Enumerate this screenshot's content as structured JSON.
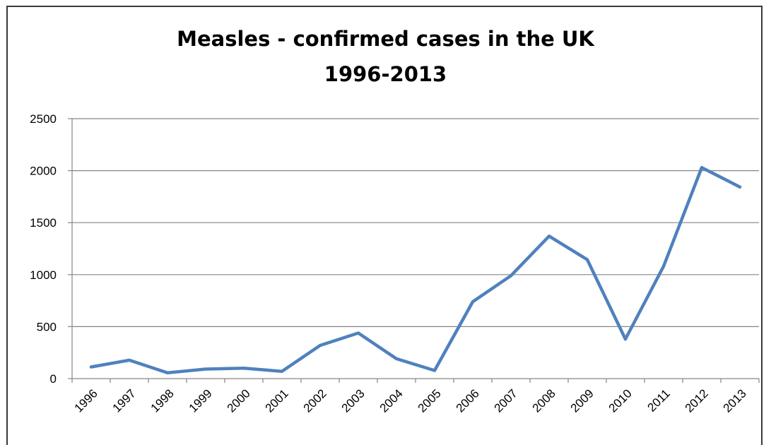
{
  "chart_data": {
    "type": "line",
    "title": "Measles - confirmed cases in the UK",
    "subtitle": "1996-2013",
    "xlabel": "",
    "ylabel": "",
    "categories": [
      "1996",
      "1997",
      "1998",
      "1999",
      "2000",
      "2001",
      "2002",
      "2003",
      "2004",
      "2005",
      "2006",
      "2007",
      "2008",
      "2009",
      "2010",
      "2011",
      "2012",
      "2013"
    ],
    "series": [
      {
        "name": "",
        "values": [
          112,
          177,
          56,
          92,
          100,
          70,
          319,
          438,
          191,
          78,
          740,
          990,
          1370,
          1144,
          380,
          1080,
          2030,
          1843
        ]
      }
    ],
    "ylim": [
      0,
      2500
    ],
    "yticks": [
      0,
      500,
      1000,
      1500,
      2000,
      2500
    ],
    "grid": true,
    "legend": "none",
    "colors": {
      "line": "#4f81bd",
      "grid": "#868686",
      "axis": "#868686"
    }
  }
}
